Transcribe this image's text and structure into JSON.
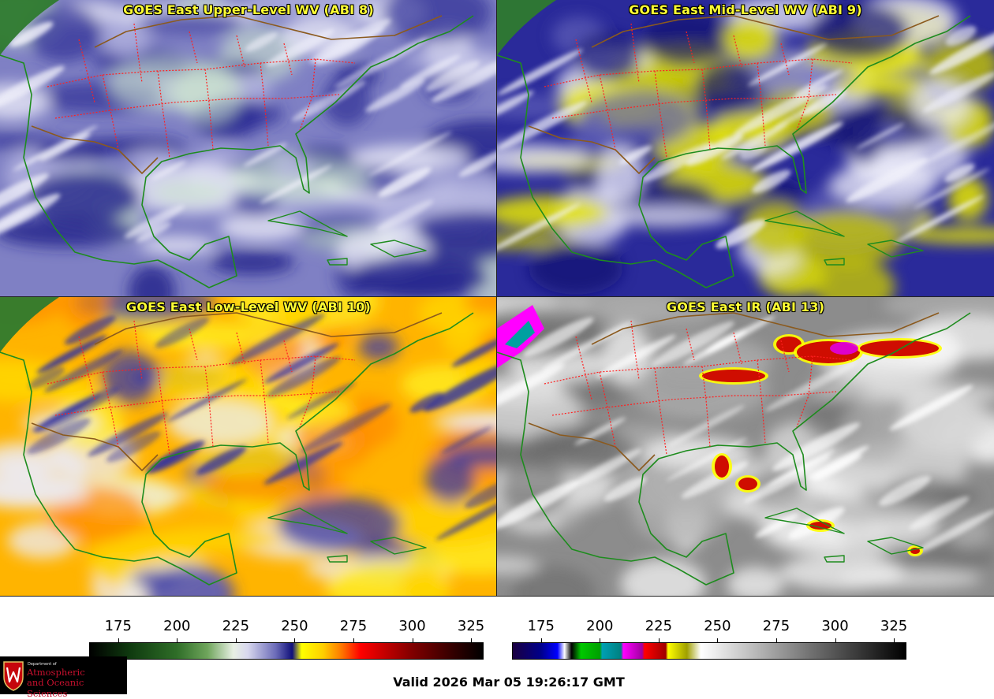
{
  "panels": [
    {
      "title": "GOES East Upper-Level WV (ABI 8)",
      "palette": "wv-upper"
    },
    {
      "title": "GOES East Mid-Level WV (ABI 9)",
      "palette": "wv-mid"
    },
    {
      "title": "GOES East Low-Level WV (ABI 10)",
      "palette": "wv-low"
    },
    {
      "title": "GOES East IR (ABI 13)",
      "palette": "ir"
    }
  ],
  "colorbars": [
    {
      "name": "wv",
      "ticks": [
        "175",
        "200",
        "225",
        "250",
        "275",
        "300",
        "325"
      ],
      "range": [
        163,
        330
      ],
      "stops": [
        {
          "value": 163,
          "color": "#000000"
        },
        {
          "value": 180,
          "color": "#0f3a0f"
        },
        {
          "value": 200,
          "color": "#2f6e28"
        },
        {
          "value": 213,
          "color": "#6fa55c"
        },
        {
          "value": 224,
          "color": "#e8f0e4"
        },
        {
          "value": 230,
          "color": "#d8d8ee"
        },
        {
          "value": 242,
          "color": "#6b6bb8"
        },
        {
          "value": 249,
          "color": "#10107a"
        },
        {
          "value": 253,
          "color": "#ffff00"
        },
        {
          "value": 262,
          "color": "#ffd000"
        },
        {
          "value": 270,
          "color": "#ff7700"
        },
        {
          "value": 278,
          "color": "#ff0000"
        },
        {
          "value": 300,
          "color": "#800000"
        },
        {
          "value": 318,
          "color": "#300000"
        },
        {
          "value": 330,
          "color": "#000000"
        }
      ]
    },
    {
      "name": "ir",
      "ticks": [
        "175",
        "200",
        "225",
        "250",
        "275",
        "300",
        "325"
      ],
      "range": [
        163,
        330
      ],
      "stops": [
        {
          "value": 163,
          "color": "#1a0040"
        },
        {
          "value": 175,
          "color": "#00008b"
        },
        {
          "value": 182,
          "color": "#0000ff"
        },
        {
          "value": 185,
          "color": "#ffffff"
        },
        {
          "value": 188,
          "color": "#000000"
        },
        {
          "value": 192,
          "color": "#00c800"
        },
        {
          "value": 200,
          "color": "#00a000"
        },
        {
          "value": 201,
          "color": "#00a0b4"
        },
        {
          "value": 209,
          "color": "#008080"
        },
        {
          "value": 210,
          "color": "#ff00ff"
        },
        {
          "value": 218,
          "color": "#a000a0"
        },
        {
          "value": 219,
          "color": "#ff0000"
        },
        {
          "value": 228,
          "color": "#a00000"
        },
        {
          "value": 229,
          "color": "#ffff00"
        },
        {
          "value": 237,
          "color": "#a0a000"
        },
        {
          "value": 243,
          "color": "#ffffff"
        },
        {
          "value": 290,
          "color": "#707070"
        },
        {
          "value": 330,
          "color": "#000000"
        }
      ]
    }
  ],
  "logo": {
    "department": "Department of",
    "line1": "Atmospheric",
    "line2": "and Oceanic Sciences"
  },
  "valid_time": "Valid 2026 Mar 05 19:26:17 GMT",
  "colors": {
    "title": "#ffff33",
    "coast": "#1e8c1e",
    "border": "#8b5a1e",
    "state": "#ff2020"
  }
}
